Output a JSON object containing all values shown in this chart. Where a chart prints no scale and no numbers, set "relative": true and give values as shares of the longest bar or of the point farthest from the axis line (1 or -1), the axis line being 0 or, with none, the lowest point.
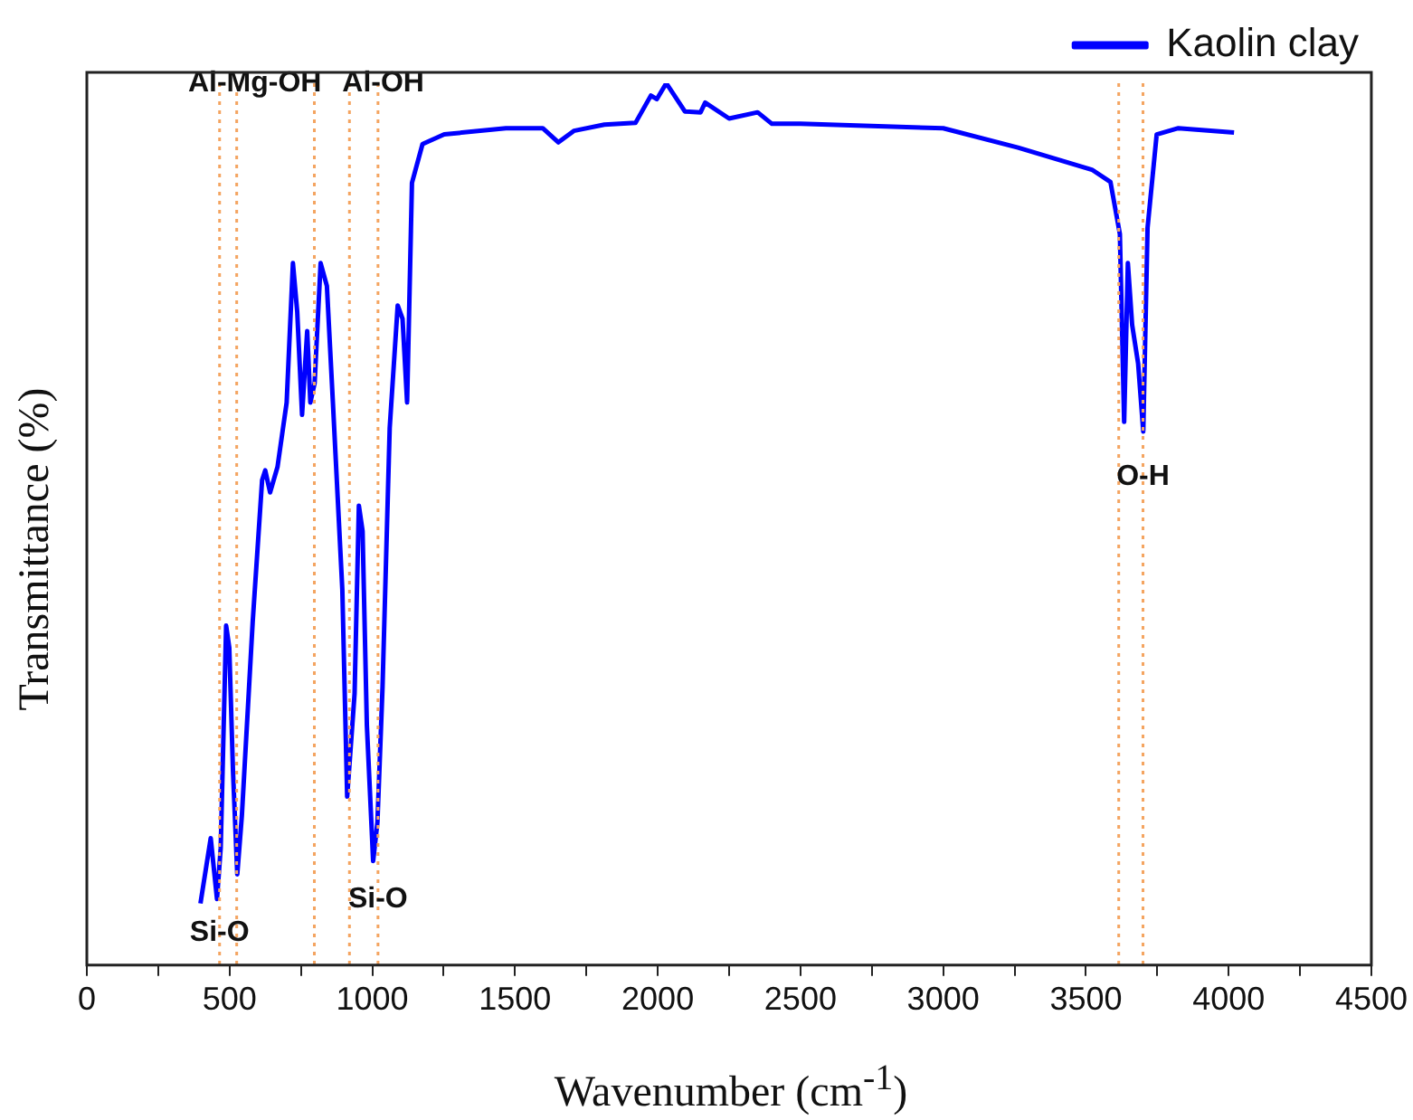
{
  "chart_data": {
    "type": "line",
    "relative": true,
    "xlabel": "Wavenumber (cm$^{-1}$)",
    "ylabel": "Transmittance (%)",
    "xlim": [
      0,
      4500
    ],
    "xticks": [
      0,
      {
        "value": 250,
        "label": null
      },
      500,
      {
        "value": 750,
        "label": null
      },
      1000,
      {
        "value": 1250,
        "label": null
      },
      1500,
      {
        "value": 1750,
        "label": null
      },
      2000,
      {
        "value": 2250,
        "label": null
      },
      2500,
      {
        "value": 2750,
        "label": null
      },
      3000,
      {
        "value": 3250,
        "label": null
      },
      3500,
      {
        "value": 3750,
        "label": null
      },
      4000,
      {
        "value": 4250,
        "label": null
      },
      4500
    ],
    "tick_labels": "x",
    "grid": false,
    "legend": "top right",
    "marker": "none",
    "line_style": "solid",
    "series": [
      {
        "name": "Kaolin clay",
        "color": "#0000ff",
        "x": [
          398,
          434,
          456,
          469,
          488,
          499,
          512,
          527,
          543,
          581,
          614,
          625,
          642,
          668,
          700,
          722,
          737,
          754,
          772,
          783,
          798,
          819,
          841,
          862,
          895,
          912,
          938,
          953,
          966,
          981,
          1003,
          1018,
          1036,
          1061,
          1089,
          1106,
          1122,
          1139,
          1176,
          1252,
          1468,
          1597,
          1652,
          1706,
          1813,
          1922,
          1976,
          1997,
          2030,
          2095,
          2150,
          2166,
          2250,
          2350,
          2400,
          2500,
          3000,
          3262,
          3521,
          3586,
          3619,
          3634,
          3647,
          3662,
          3683,
          3701,
          3716,
          3748,
          3824,
          4019
        ],
        "values": [
          0.07,
          0.144,
          0.075,
          0.133,
          0.385,
          0.36,
          0.22,
          0.103,
          0.169,
          0.389,
          0.55,
          0.561,
          0.536,
          0.565,
          0.638,
          0.796,
          0.741,
          0.624,
          0.719,
          0.638,
          0.66,
          0.796,
          0.77,
          0.638,
          0.426,
          0.191,
          0.308,
          0.521,
          0.492,
          0.272,
          0.118,
          0.162,
          0.316,
          0.609,
          0.748,
          0.733,
          0.638,
          0.887,
          0.931,
          0.942,
          0.949,
          0.949,
          0.933,
          0.946,
          0.953,
          0.955,
          0.986,
          0.982,
          1,
          0.968,
          0.967,
          0.978,
          0.96,
          0.967,
          0.954,
          0.954,
          0.949,
          0.927,
          0.902,
          0.888,
          0.829,
          0.616,
          0.796,
          0.726,
          0.682,
          0.605,
          0.836,
          0.942,
          0.949,
          0.944
        ]
      }
    ],
    "ref_lines": [
      {
        "axis": "x",
        "value": 465,
        "color": "#f4a460",
        "line_style": "dotted"
      },
      {
        "axis": "x",
        "value": 525,
        "color": "#f4a460",
        "line_style": "dotted"
      },
      {
        "axis": "x",
        "value": 797,
        "color": "#f4a460",
        "line_style": "dotted"
      },
      {
        "axis": "x",
        "value": 920,
        "color": "#f4a460",
        "line_style": "dotted"
      },
      {
        "axis": "x",
        "value": 1020,
        "color": "#f4a460",
        "line_style": "dotted"
      },
      {
        "axis": "x",
        "value": 3615,
        "color": "#f4a460",
        "line_style": "dotted"
      },
      {
        "axis": "x",
        "value": 3700,
        "color": "#f4a460",
        "line_style": "dotted"
      }
    ],
    "annotations": [
      {
        "text": "Si-O",
        "x": 465,
        "y": 0.037
      },
      {
        "text": "Si-O",
        "x": 1020,
        "y": 0.075
      },
      {
        "text": "Al-Mg-OH",
        "x": 797,
        "y": 1.0
      },
      {
        "text": "Al-OH",
        "x": 920,
        "y": 1.0
      },
      {
        "text": "O-H",
        "x": 3700,
        "y": 0.554
      }
    ]
  }
}
